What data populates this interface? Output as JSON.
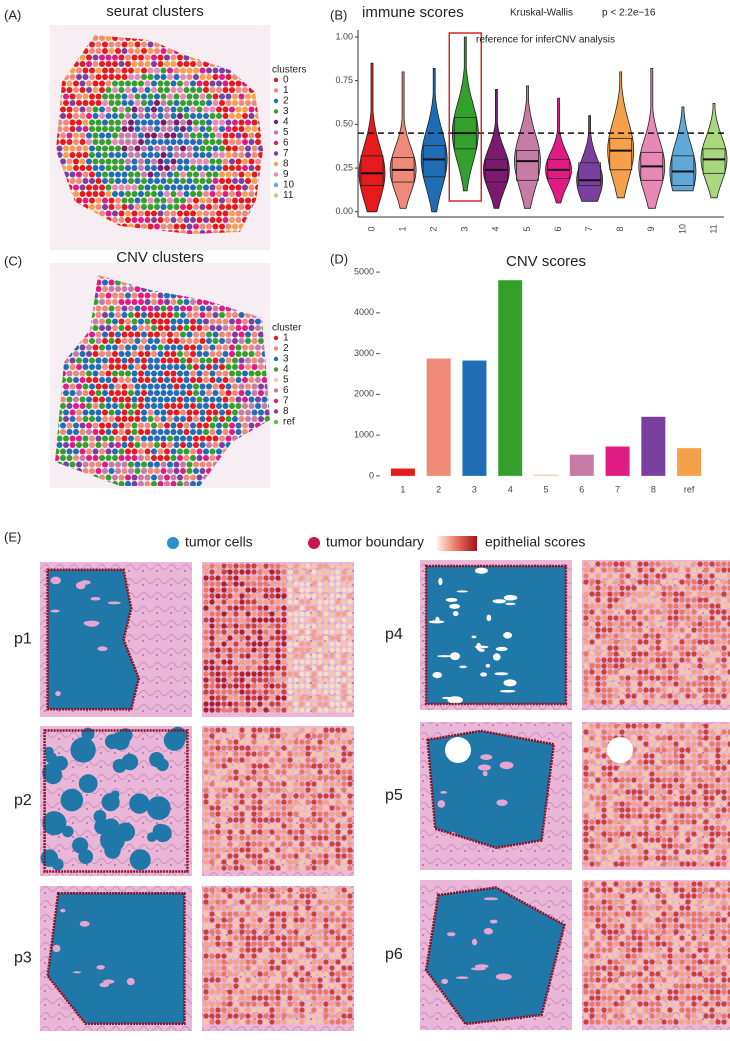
{
  "chart_data": [
    {
      "type": "violin",
      "label": "(B)",
      "title": "immune scores",
      "test": "Kruskal-Wallis",
      "p_value_label": "p < 2.2e−16",
      "annotation": "reference for inferCNV analysis",
      "categories": [
        "0",
        "1",
        "2",
        "3",
        "4",
        "5",
        "6",
        "7",
        "8",
        "9",
        "10",
        "11"
      ],
      "values": [
        0.22,
        0.24,
        0.3,
        0.45,
        0.24,
        0.29,
        0.24,
        0.18,
        0.35,
        0.26,
        0.23,
        0.3
      ],
      "q1": [
        0.15,
        0.17,
        0.2,
        0.36,
        0.17,
        0.18,
        0.19,
        0.15,
        0.24,
        0.18,
        0.15,
        0.22
      ],
      "q3": [
        0.32,
        0.31,
        0.38,
        0.54,
        0.3,
        0.35,
        0.3,
        0.28,
        0.42,
        0.34,
        0.32,
        0.36
      ],
      "min": [
        0.0,
        0.02,
        0.0,
        0.12,
        0.02,
        0.02,
        0.05,
        0.06,
        0.08,
        0.02,
        0.12,
        0.08
      ],
      "max": [
        0.85,
        0.8,
        0.82,
        1.0,
        0.7,
        0.72,
        0.65,
        0.55,
        0.8,
        0.82,
        0.6,
        0.62
      ],
      "colors": [
        "#e41a1c",
        "#f08a78",
        "#1f6eb5",
        "#33a02c",
        "#7b1a6e",
        "#c77ca5",
        "#e01b84",
        "#7b3fa0",
        "#f5a04a",
        "#e788b5",
        "#5fa8d8",
        "#a9d77d"
      ],
      "reference_line": 0.45,
      "highlight_index": 3,
      "ylim": [
        -0.03,
        1.04
      ],
      "yticks": [
        {
          "value": 0,
          "label": "0.00"
        },
        {
          "value": 0.25,
          "label": "0.25"
        },
        {
          "value": 0.5,
          "label": "0.50"
        },
        {
          "value": 0.75,
          "label": "0.75"
        },
        {
          "value": 1,
          "label": "1.00"
        }
      ]
    },
    {
      "type": "bar",
      "label": "(D)",
      "title": "CNV scores",
      "categories": [
        "1",
        "2",
        "3",
        "4",
        "5",
        "6",
        "7",
        "8",
        "ref"
      ],
      "values": [
        180,
        2880,
        2830,
        4800,
        30,
        520,
        720,
        1450,
        680
      ],
      "colors": [
        "#e41a1c",
        "#f08a78",
        "#1f6eb5",
        "#33a02c",
        "#f7c8b0",
        "#c77ca5",
        "#e01b84",
        "#7b3fa0",
        "#f5a04a"
      ],
      "ylim": [
        -150,
        5100
      ],
      "yticks": [
        0,
        1000,
        2000,
        3000,
        4000,
        5000
      ]
    }
  ],
  "spatial_maps": [
    {
      "label": "(A)",
      "title": "seurat clusters",
      "legend_title": "clusters",
      "legend": [
        "0",
        "1",
        "2",
        "3",
        "4",
        "5",
        "6",
        "7",
        "8",
        "9",
        "10",
        "11"
      ],
      "colors": [
        "#e41a1c",
        "#f08a78",
        "#1f6eb5",
        "#33a02c",
        "#7b1a6e",
        "#c77ca5",
        "#e01b84",
        "#7b3fa0",
        "#f5a04a",
        "#e788b5",
        "#5fa8d8",
        "#a9d77d"
      ]
    },
    {
      "label": "(C)",
      "title": "CNV clusters",
      "legend_title": "cluster",
      "legend": [
        "1",
        "2",
        "3",
        "4",
        "5",
        "6",
        "7",
        "8",
        "ref"
      ],
      "colors": [
        "#e41a1c",
        "#f08a78",
        "#1f6eb5",
        "#33a02c",
        "#f7c8b0",
        "#c77ca5",
        "#e01b84",
        "#7b3fa0",
        "#5fb85a"
      ]
    }
  ],
  "panel_e": {
    "label": "(E)",
    "legend": [
      "tumor cells",
      "tumor boundary",
      "epithelial scores"
    ],
    "samples": [
      "p1",
      "p2",
      "p3",
      "p4",
      "p5",
      "p6"
    ]
  }
}
